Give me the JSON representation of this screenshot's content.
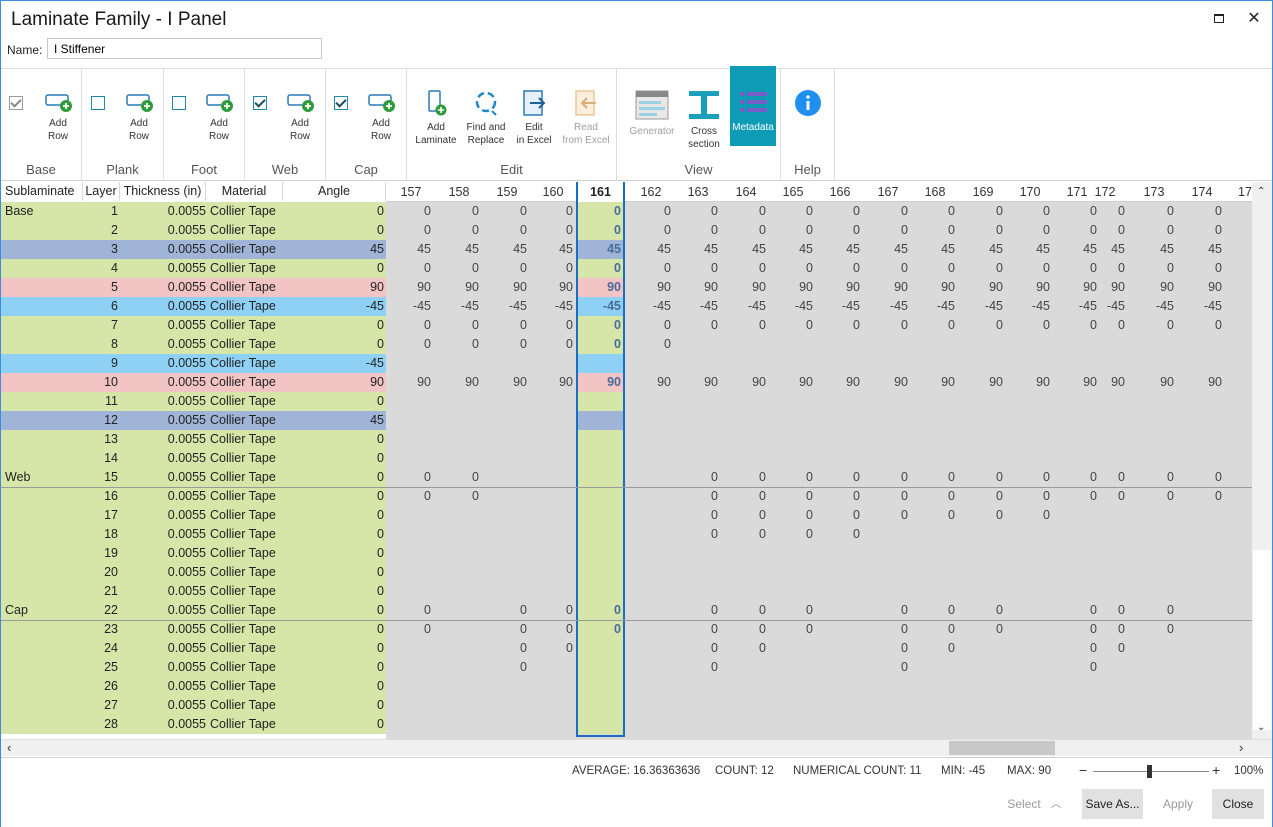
{
  "window": {
    "title": "Laminate Family - I Panel",
    "maximize_icon": "maximize-icon",
    "close_glyph": "✕"
  },
  "name_field": {
    "label": "Name:",
    "value": "I Stiffener"
  },
  "ribbon": {
    "groups": [
      {
        "label": "Base",
        "button": "Add\nRow",
        "checked": true,
        "gray": true
      },
      {
        "label": "Plank",
        "button": "Add\nRow",
        "checked": false
      },
      {
        "label": "Foot",
        "button": "Add\nRow",
        "checked": false
      },
      {
        "label": "Web",
        "button": "Add\nRow",
        "checked": true
      },
      {
        "label": "Cap",
        "button": "Add\nRow",
        "checked": true
      }
    ],
    "edit": {
      "label": "Edit",
      "add_laminate": "Add\nLaminate",
      "find_replace": "Find and\nReplace",
      "edit_excel": "Edit\nin Excel",
      "read_excel": "Read\nfrom Excel"
    },
    "view": {
      "label": "View",
      "generator": "Generator",
      "cross_section": "Cross\nsection",
      "metadata": "Metadata"
    },
    "help": {
      "label": "Help"
    }
  },
  "grid": {
    "headers": {
      "sublaminate": "Sublaminate",
      "layer": "Layer",
      "thickness": "Thickness (in)",
      "material": "Material",
      "angle": "Angle"
    },
    "columns": [
      "157",
      "158",
      "159",
      "160",
      "161",
      "162",
      "163",
      "164",
      "165",
      "166",
      "167",
      "168",
      "169",
      "170",
      "171",
      "172",
      "173",
      "174",
      "17"
    ],
    "selected_column": "161",
    "rows": [
      {
        "sub": "Base",
        "layer": "1",
        "thk": "0.0055",
        "mat": "Collier Tape",
        "angle": "0",
        "color": "green",
        "vals": [
          "0",
          "0",
          "0",
          "0",
          "0",
          "0",
          "0",
          "0",
          "0",
          "0",
          "0",
          "0",
          "0",
          "0",
          "0",
          "0",
          "0",
          "0"
        ]
      },
      {
        "sub": "",
        "layer": "2",
        "thk": "0.0055",
        "mat": "Collier Tape",
        "angle": "0",
        "color": "green",
        "vals": [
          "0",
          "0",
          "0",
          "0",
          "0",
          "0",
          "0",
          "0",
          "0",
          "0",
          "0",
          "0",
          "0",
          "0",
          "0",
          "0",
          "0",
          "0"
        ]
      },
      {
        "sub": "",
        "layer": "3",
        "thk": "0.0055",
        "mat": "Collier Tape",
        "angle": "45",
        "color": "blue",
        "vals": [
          "45",
          "45",
          "45",
          "45",
          "45",
          "45",
          "45",
          "45",
          "45",
          "45",
          "45",
          "45",
          "45",
          "45",
          "45",
          "45",
          "45",
          "45"
        ]
      },
      {
        "sub": "",
        "layer": "4",
        "thk": "0.0055",
        "mat": "Collier Tape",
        "angle": "0",
        "color": "green",
        "vals": [
          "0",
          "0",
          "0",
          "0",
          "0",
          "0",
          "0",
          "0",
          "0",
          "0",
          "0",
          "0",
          "0",
          "0",
          "0",
          "0",
          "0",
          "0"
        ]
      },
      {
        "sub": "",
        "layer": "5",
        "thk": "0.0055",
        "mat": "Collier Tape",
        "angle": "90",
        "color": "pink",
        "vals": [
          "90",
          "90",
          "90",
          "90",
          "90",
          "90",
          "90",
          "90",
          "90",
          "90",
          "90",
          "90",
          "90",
          "90",
          "90",
          "90",
          "90",
          "90"
        ]
      },
      {
        "sub": "",
        "layer": "6",
        "thk": "0.0055",
        "mat": "Collier Tape",
        "angle": "-45",
        "color": "lightblue",
        "vals": [
          "-45",
          "-45",
          "-45",
          "-45",
          "-45",
          "-45",
          "-45",
          "-45",
          "-45",
          "-45",
          "-45",
          "-45",
          "-45",
          "-45",
          "-45",
          "-45",
          "-45",
          "-45"
        ]
      },
      {
        "sub": "",
        "layer": "7",
        "thk": "0.0055",
        "mat": "Collier Tape",
        "angle": "0",
        "color": "green",
        "vals": [
          "0",
          "0",
          "0",
          "0",
          "0",
          "0",
          "0",
          "0",
          "0",
          "0",
          "0",
          "0",
          "0",
          "0",
          "0",
          "0",
          "0",
          "0"
        ]
      },
      {
        "sub": "",
        "layer": "8",
        "thk": "0.0055",
        "mat": "Collier Tape",
        "angle": "0",
        "color": "green",
        "vals": [
          "0",
          "0",
          "0",
          "0",
          "0",
          "0",
          "",
          "",
          "",
          "",
          "",
          "",
          "",
          "",
          "",
          "",
          "",
          ""
        ]
      },
      {
        "sub": "",
        "layer": "9",
        "thk": "0.0055",
        "mat": "Collier Tape",
        "angle": "-45",
        "color": "lightblue",
        "vals": [
          "",
          "",
          "",
          "",
          "",
          "",
          "",
          "",
          "",
          "",
          "",
          "",
          "",
          "",
          "",
          "",
          "",
          ""
        ]
      },
      {
        "sub": "",
        "layer": "10",
        "thk": "0.0055",
        "mat": "Collier Tape",
        "angle": "90",
        "color": "pink",
        "vals": [
          "90",
          "90",
          "90",
          "90",
          "90",
          "90",
          "90",
          "90",
          "90",
          "90",
          "90",
          "90",
          "90",
          "90",
          "90",
          "90",
          "90",
          "90"
        ]
      },
      {
        "sub": "",
        "layer": "11",
        "thk": "0.0055",
        "mat": "Collier Tape",
        "angle": "0",
        "color": "green",
        "vals": []
      },
      {
        "sub": "",
        "layer": "12",
        "thk": "0.0055",
        "mat": "Collier Tape",
        "angle": "45",
        "color": "blue",
        "vals": []
      },
      {
        "sub": "",
        "layer": "13",
        "thk": "0.0055",
        "mat": "Collier Tape",
        "angle": "0",
        "color": "green",
        "vals": []
      },
      {
        "sub": "",
        "layer": "14",
        "thk": "0.0055",
        "mat": "Collier Tape",
        "angle": "0",
        "color": "green",
        "vals": []
      },
      {
        "sub": "Web",
        "layer": "15",
        "thk": "0.0055",
        "mat": "Collier Tape",
        "angle": "0",
        "color": "green",
        "vals": [
          "0",
          "0",
          "",
          "",
          "",
          "",
          "0",
          "0",
          "0",
          "0",
          "0",
          "0",
          "0",
          "0",
          "0",
          "0",
          "0",
          "0"
        ]
      },
      {
        "sub": "",
        "layer": "16",
        "thk": "0.0055",
        "mat": "Collier Tape",
        "angle": "0",
        "color": "green",
        "vals": [
          "0",
          "0",
          "",
          "",
          "",
          "",
          "0",
          "0",
          "0",
          "0",
          "0",
          "0",
          "0",
          "0",
          "0",
          "0",
          "0",
          "0"
        ]
      },
      {
        "sub": "",
        "layer": "17",
        "thk": "0.0055",
        "mat": "Collier Tape",
        "angle": "0",
        "color": "green",
        "vals": [
          "",
          "",
          "",
          "",
          "",
          "",
          "0",
          "0",
          "0",
          "0",
          "0",
          "0",
          "0",
          "0",
          "",
          "",
          "",
          ""
        ]
      },
      {
        "sub": "",
        "layer": "18",
        "thk": "0.0055",
        "mat": "Collier Tape",
        "angle": "0",
        "color": "green",
        "vals": [
          "",
          "",
          "",
          "",
          "",
          "",
          "0",
          "0",
          "0",
          "0",
          "",
          "",
          "",
          "",
          "",
          "",
          "",
          ""
        ]
      },
      {
        "sub": "",
        "layer": "19",
        "thk": "0.0055",
        "mat": "Collier Tape",
        "angle": "0",
        "color": "green",
        "vals": []
      },
      {
        "sub": "",
        "layer": "20",
        "thk": "0.0055",
        "mat": "Collier Tape",
        "angle": "0",
        "color": "green",
        "vals": []
      },
      {
        "sub": "",
        "layer": "21",
        "thk": "0.0055",
        "mat": "Collier Tape",
        "angle": "0",
        "color": "green",
        "vals": []
      },
      {
        "sub": "Cap",
        "layer": "22",
        "thk": "0.0055",
        "mat": "Collier Tape",
        "angle": "0",
        "color": "green",
        "vals": [
          "0",
          "",
          "0",
          "0",
          "0",
          "",
          "0",
          "0",
          "0",
          "",
          "0",
          "0",
          "0",
          "",
          "0",
          "0",
          "0",
          ""
        ]
      },
      {
        "sub": "",
        "layer": "23",
        "thk": "0.0055",
        "mat": "Collier Tape",
        "angle": "0",
        "color": "green",
        "vals": [
          "0",
          "",
          "0",
          "0",
          "0",
          "",
          "0",
          "0",
          "0",
          "",
          "0",
          "0",
          "0",
          "",
          "0",
          "0",
          "0",
          ""
        ]
      },
      {
        "sub": "",
        "layer": "24",
        "thk": "0.0055",
        "mat": "Collier Tape",
        "angle": "0",
        "color": "green",
        "vals": [
          "",
          "",
          "0",
          "0",
          "",
          "",
          "0",
          "0",
          "",
          "",
          "0",
          "0",
          "",
          "",
          "0",
          "0",
          "",
          ""
        ]
      },
      {
        "sub": "",
        "layer": "25",
        "thk": "0.0055",
        "mat": "Collier Tape",
        "angle": "0",
        "color": "green",
        "vals": [
          "",
          "",
          "0",
          "",
          "",
          "",
          "0",
          "",
          "",
          "",
          "0",
          "",
          "",
          "",
          "0",
          "",
          "",
          ""
        ]
      },
      {
        "sub": "",
        "layer": "26",
        "thk": "0.0055",
        "mat": "Collier Tape",
        "angle": "0",
        "color": "green",
        "vals": []
      },
      {
        "sub": "",
        "layer": "27",
        "thk": "0.0055",
        "mat": "Collier Tape",
        "angle": "0",
        "color": "green",
        "vals": []
      },
      {
        "sub": "",
        "layer": "28",
        "thk": "0.0055",
        "mat": "Collier Tape",
        "angle": "0",
        "color": "green",
        "vals": []
      }
    ]
  },
  "colors": {
    "green": "#d6e6a8",
    "blue": "#9fb4d6",
    "pink": "#f3c4c4",
    "lightblue": "#8fd0f5",
    "selected": "#1a6dc0",
    "metadata_bg": "#0e9bb5"
  },
  "status": {
    "average": "AVERAGE: 16.36363636",
    "count": "COUNT: 12",
    "numerical_count": "NUMERICAL COUNT: 11",
    "min": "MIN: -45",
    "max": "MAX: 90",
    "zoom_minus": "−",
    "zoom_plus": "+",
    "zoom": "100%"
  },
  "footer": {
    "select": "Select",
    "save_as": "Save As...",
    "apply": "Apply",
    "close": "Close"
  }
}
